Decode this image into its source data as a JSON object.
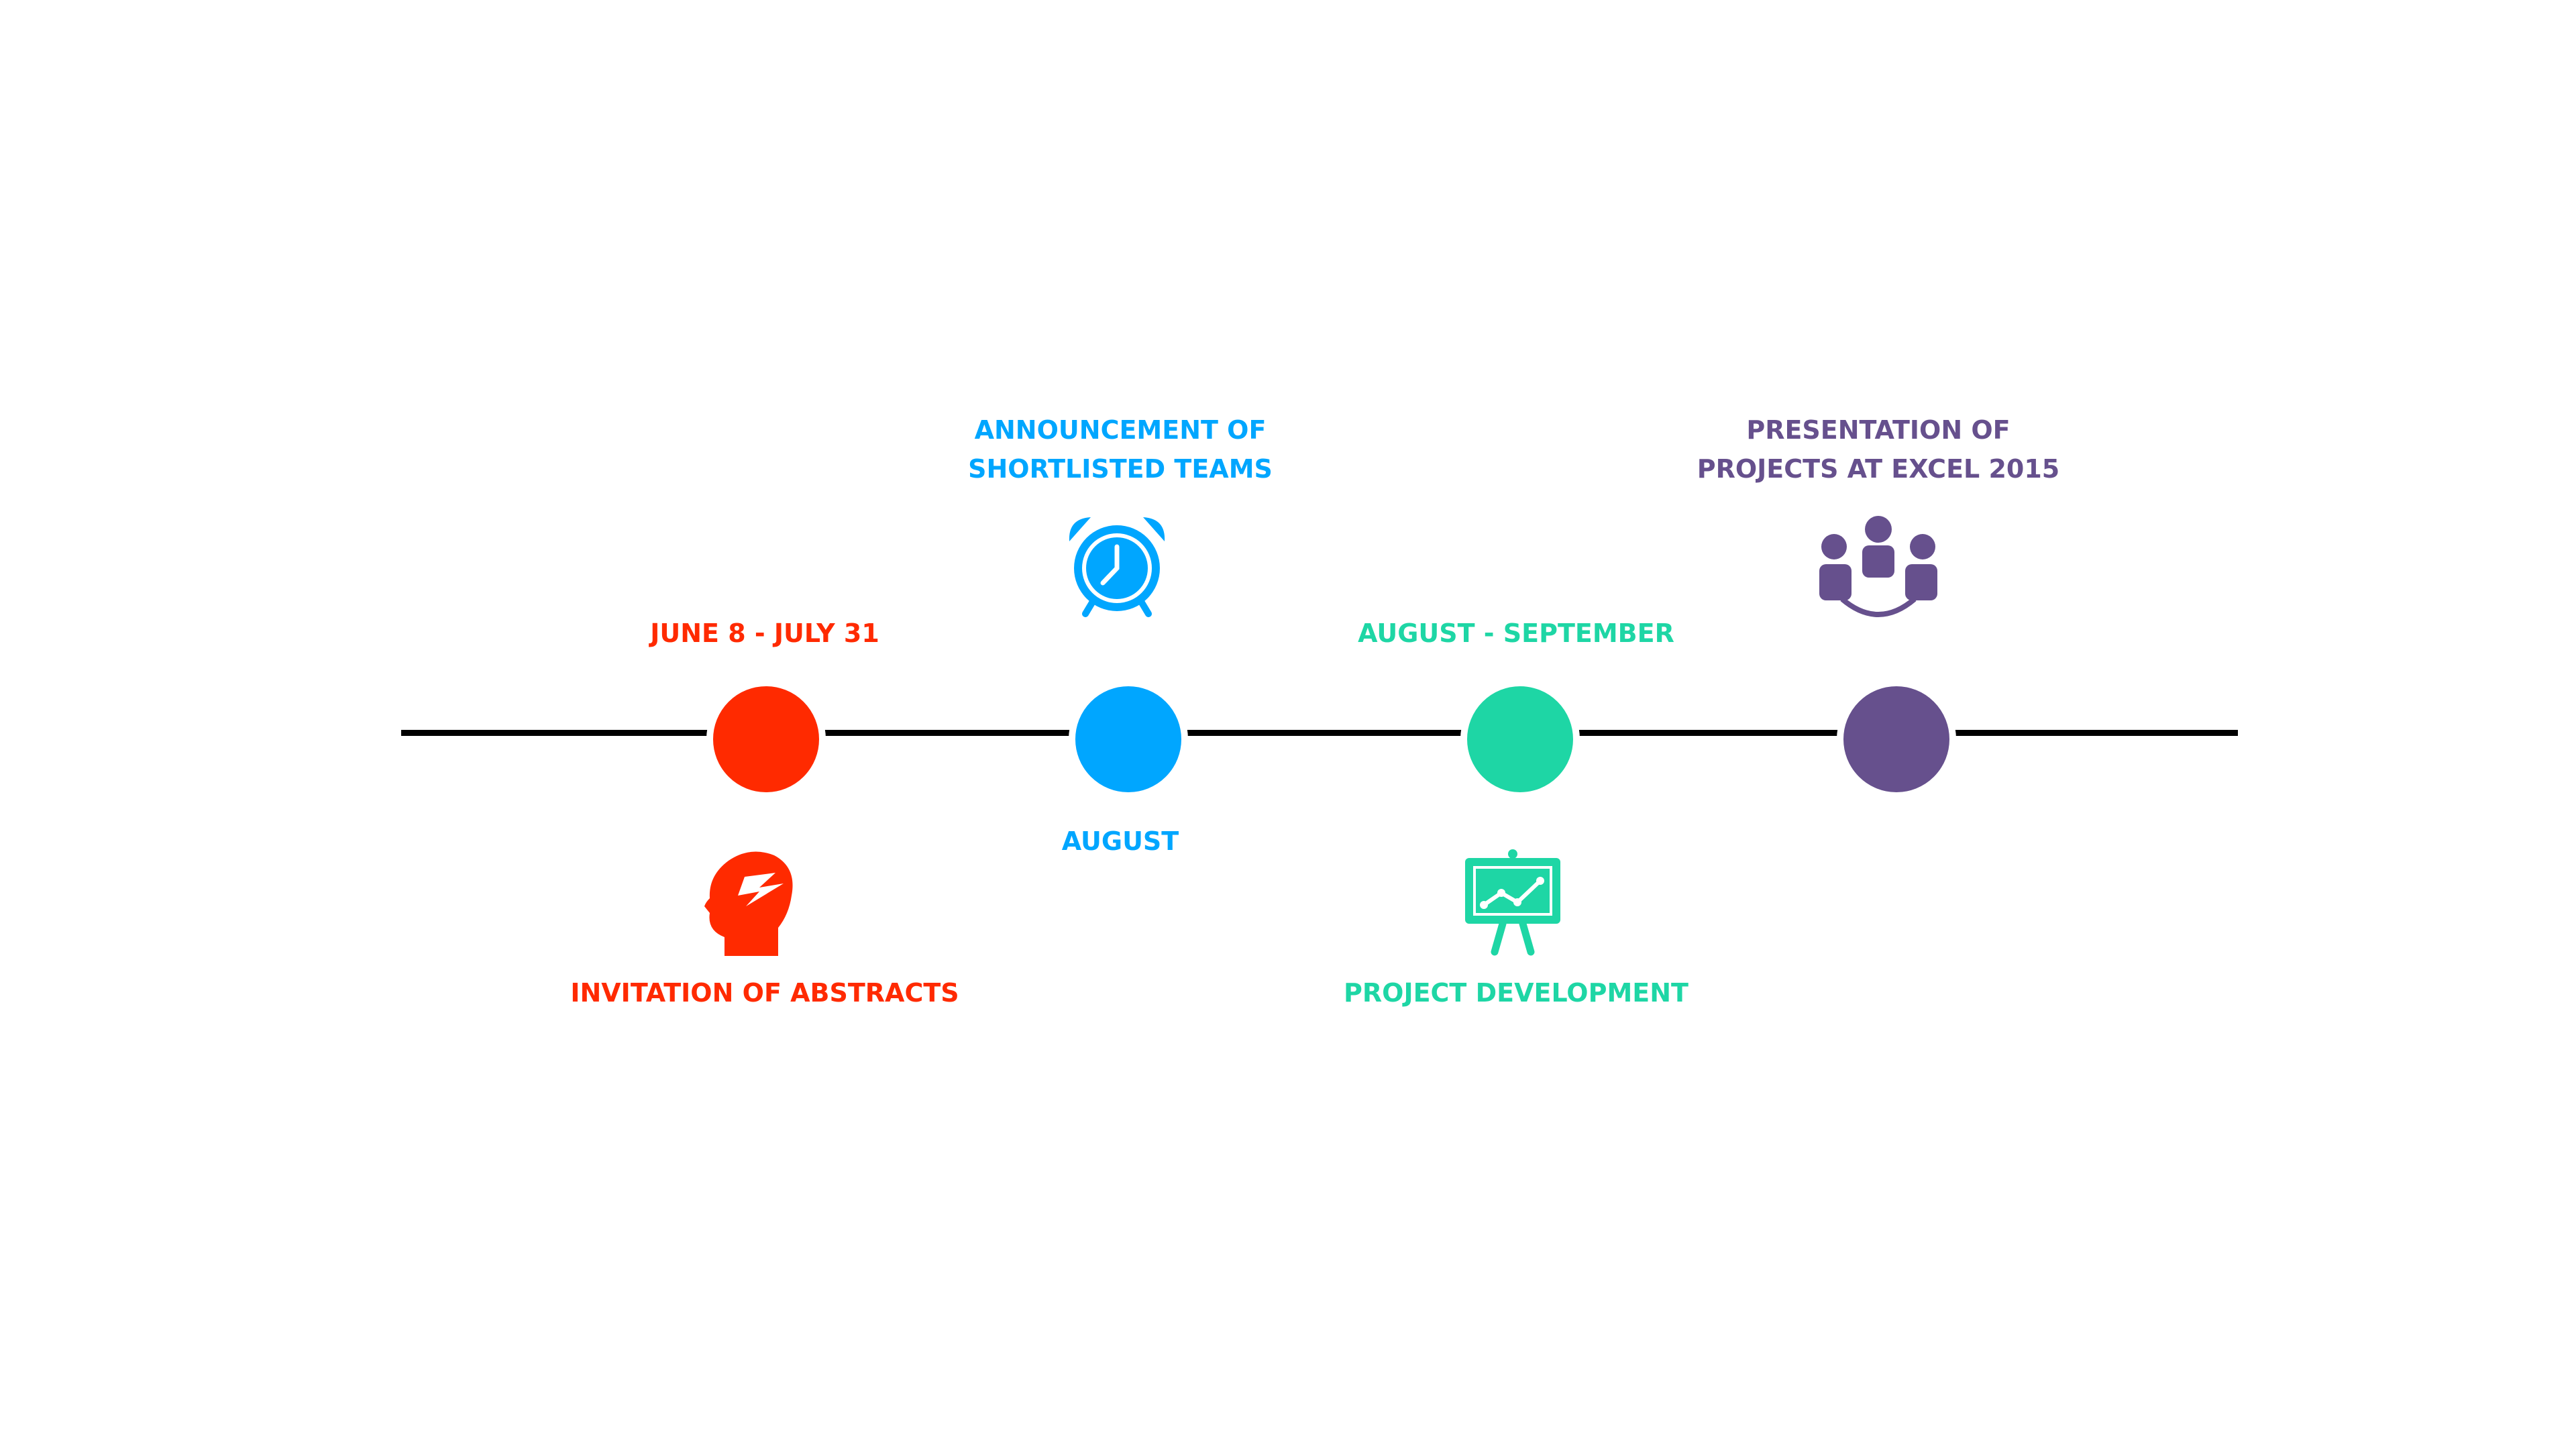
{
  "colors": {
    "red": "#ff2a00",
    "blue": "#00a6ff",
    "teal": "#1ed6a5",
    "purple": "#66508d",
    "line": "#000000"
  },
  "milestones": [
    {
      "date": "JUNE 8 - JULY 31",
      "title": "INVITATION OF ABSTRACTS",
      "icon": "head-lightning-icon",
      "color": "#ff2a00"
    },
    {
      "date": "AUGUST",
      "title_line1": "ANNOUNCEMENT OF",
      "title_line2": "SHORTLISTED TEAMS",
      "icon": "alarm-clock-icon",
      "color": "#00a6ff"
    },
    {
      "date": "AUGUST - SEPTEMBER",
      "title": "PROJECT DEVELOPMENT",
      "icon": "presentation-board-icon",
      "color": "#1ed6a5"
    },
    {
      "title_line1": "PRESENTATION OF",
      "title_line2": "PROJECTS AT EXCEL 2015",
      "icon": "team-meeting-icon",
      "color": "#66508d"
    }
  ]
}
